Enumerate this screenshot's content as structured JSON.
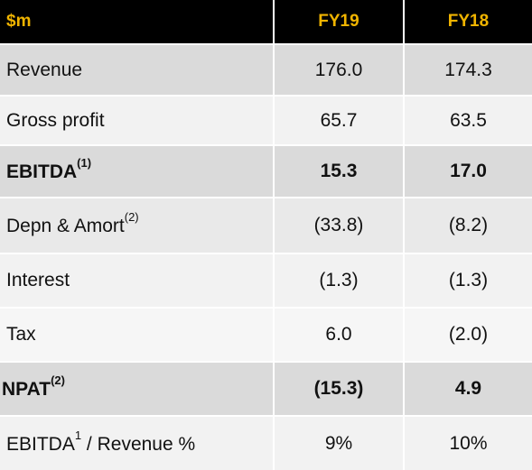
{
  "table": {
    "header": [
      "$m",
      "FY19",
      "FY18"
    ],
    "rows": [
      {
        "label": "Revenue",
        "values": [
          "176.0",
          "174.3"
        ]
      },
      {
        "label": "Gross profit",
        "values": [
          "65.7",
          "63.5"
        ]
      },
      {
        "label": "EBITDA",
        "sup": "(1)",
        "values": [
          "15.3",
          "17.0"
        ]
      },
      {
        "label": "Depn & Amort",
        "sup": "(2)",
        "values": [
          "(33.8)",
          "(8.2)"
        ]
      },
      {
        "label": "Interest",
        "values": [
          "(1.3)",
          "(1.3)"
        ]
      },
      {
        "label": "Tax",
        "values": [
          "6.0",
          "(2.0)"
        ]
      },
      {
        "label": "NPAT",
        "sup": "(2)",
        "values": [
          "(15.3)",
          "4.9"
        ]
      },
      {
        "label": "EBITDA",
        "sup": "1",
        "after": " / Revenue %",
        "values": [
          "9%",
          "10%"
        ]
      }
    ]
  }
}
